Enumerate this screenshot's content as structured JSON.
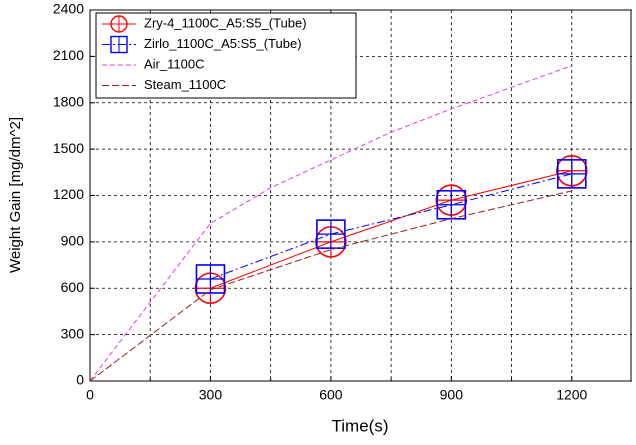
{
  "chart_data": {
    "type": "line",
    "x_label": "Time(s)",
    "y_label": "Weight Gain [mg/dm^2]",
    "xlim": [
      0,
      1350
    ],
    "ylim": [
      0,
      2400
    ],
    "xticks": [
      0,
      300,
      600,
      900,
      1200
    ],
    "xminor": [
      150,
      450,
      750,
      1050
    ],
    "yticks": [
      0,
      300,
      600,
      900,
      1200,
      1500,
      1800,
      2100,
      2400
    ],
    "grid": true,
    "legend": "upper left",
    "series": [
      {
        "name": "Zry-4_1100C_A5:S5_(Tube)",
        "color": "#ff0000",
        "marker": "circle",
        "dash": "none",
        "x": [
          300,
          600,
          900,
          1200
        ],
        "values": [
          600,
          900,
          1170,
          1360
        ]
      },
      {
        "name": "Zirlo_1100C_A5:S5_(Tube)",
        "color": "#0000ff",
        "marker": "square",
        "dash": "8,3,2,3",
        "x": [
          300,
          600,
          900,
          1200
        ],
        "values": [
          660,
          950,
          1140,
          1340
        ]
      },
      {
        "name": "Air_1100C",
        "color": "#e040e0",
        "marker": "none",
        "dash": "5,3",
        "x": [
          0,
          300,
          450,
          600,
          750,
          900,
          1050,
          1200
        ],
        "values": [
          0,
          1020,
          1250,
          1430,
          1610,
          1760,
          1900,
          2040
        ]
      },
      {
        "name": "Steam_1100C",
        "color": "#a01c1c",
        "marker": "none",
        "dash": "7,3",
        "x": [
          0,
          300,
          600,
          900,
          1200
        ],
        "values": [
          0,
          590,
          850,
          1050,
          1230
        ]
      }
    ]
  }
}
